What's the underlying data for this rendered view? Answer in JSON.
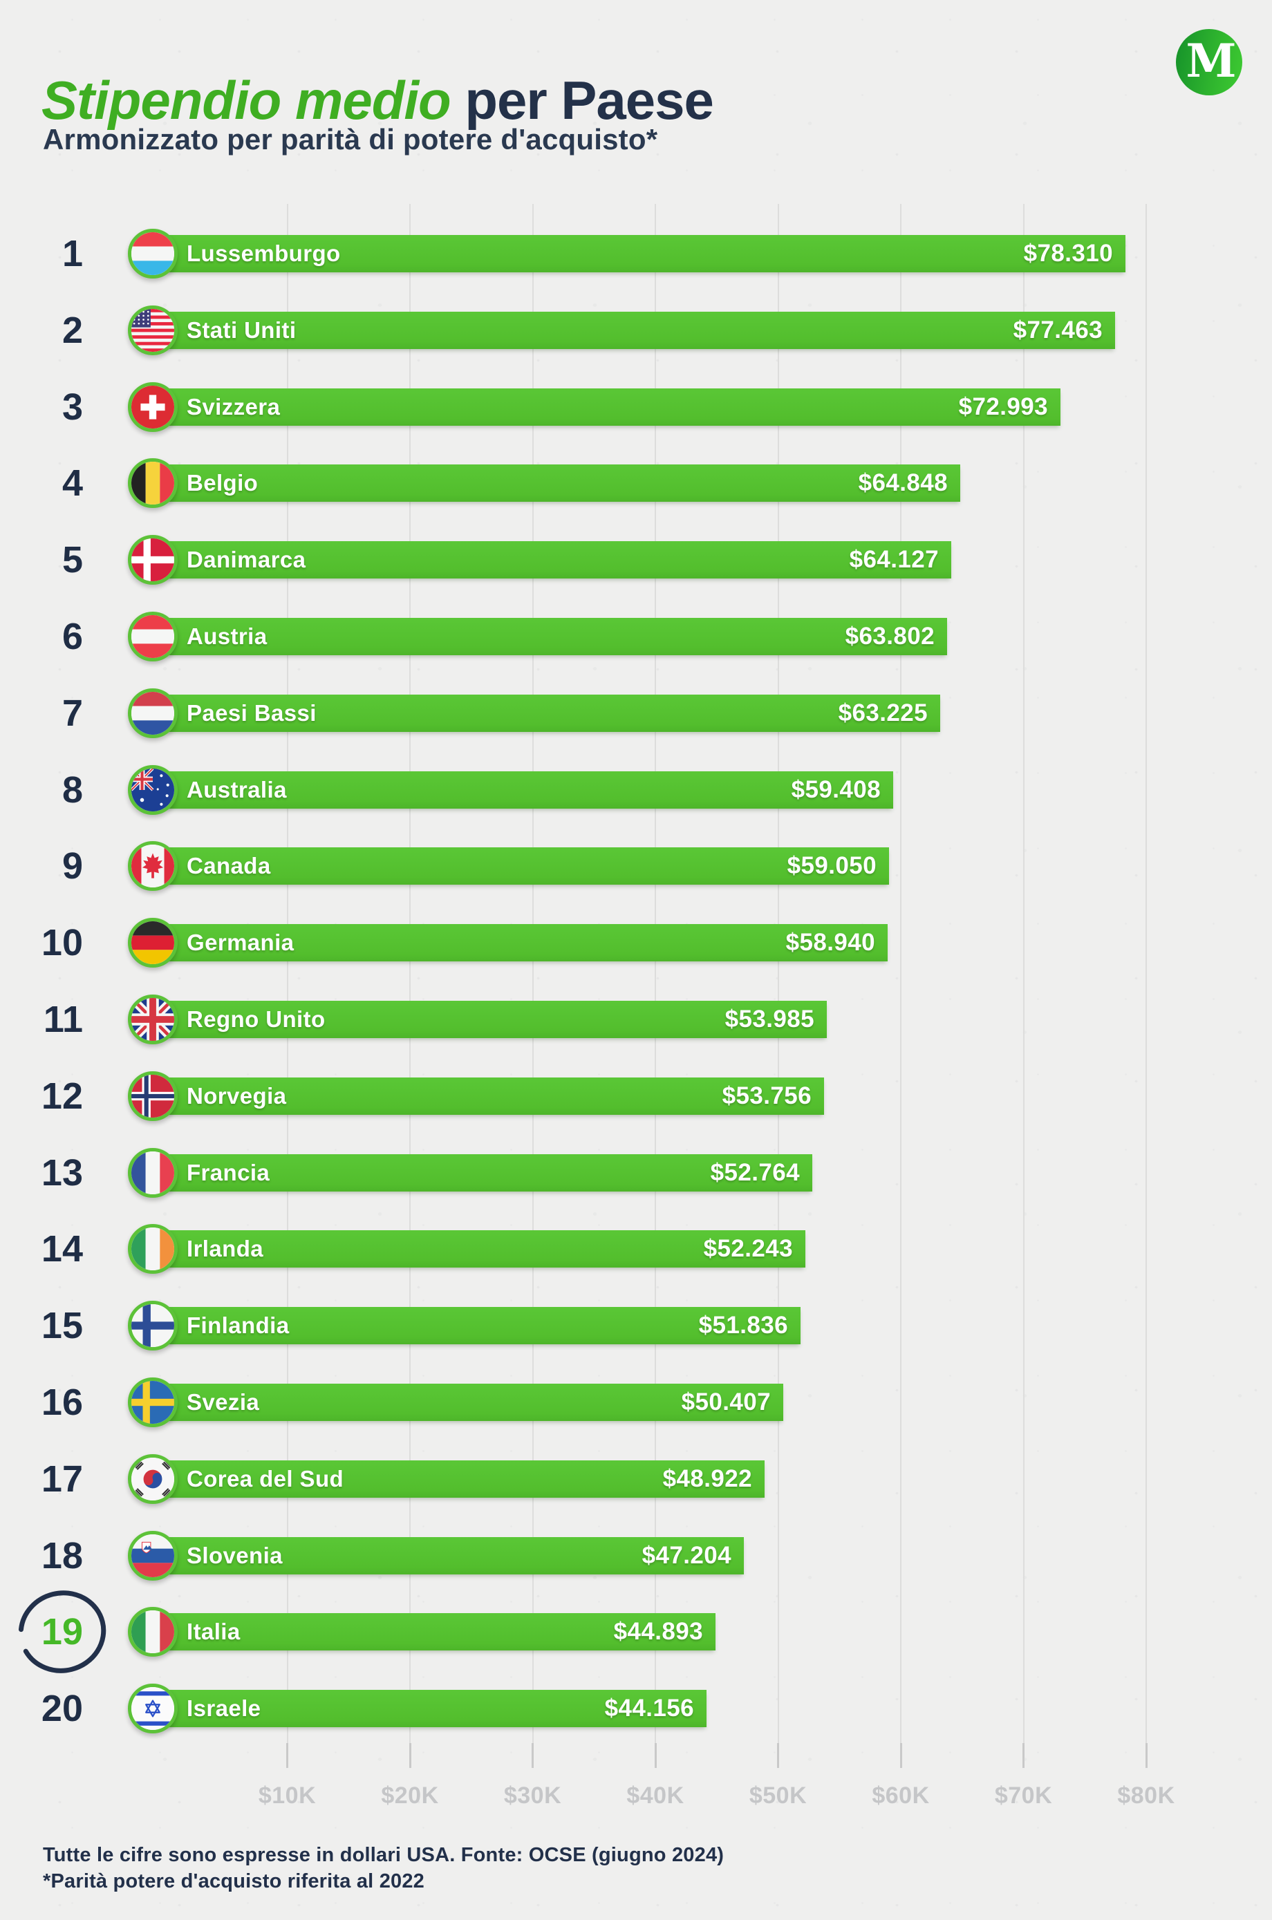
{
  "title": {
    "highlight": "Stipendio medio",
    "rest": " per Paese"
  },
  "subtitle": "Armonizzato per parità di potere d'acquisto*",
  "logo": {
    "letter": "M"
  },
  "colors": {
    "background": "#efefee",
    "bar_green": "#53be2d",
    "flag_ring_green": "#5cc238",
    "title_green": "#3fae22",
    "navy": "#233149",
    "highlight_rank_green": "#45b827",
    "axis_gray": "#c5c6c8",
    "gridline_gray": "#dddddc",
    "bar_text": "#ffffff"
  },
  "chart_data": {
    "type": "bar",
    "orientation": "horizontal",
    "title": "Stipendio medio per Paese",
    "subtitle": "Armonizzato per parità di potere d'acquisto*",
    "unit": "USD",
    "xlim": [
      0,
      80000
    ],
    "grid": "vertical-gridlines-on",
    "x_ticks": [
      {
        "label": "$10K",
        "value": 10000
      },
      {
        "label": "$20K",
        "value": 20000
      },
      {
        "label": "$30K",
        "value": 30000
      },
      {
        "label": "$40K",
        "value": 40000
      },
      {
        "label": "$50K",
        "value": 50000
      },
      {
        "label": "$60K",
        "value": 60000
      },
      {
        "label": "$70K",
        "value": 70000
      },
      {
        "label": "$80K",
        "value": 80000
      }
    ],
    "highlighted_rank": 19,
    "bars": [
      {
        "rank": 1,
        "country": "Lussemburgo",
        "flag": "lu",
        "value": 78310,
        "value_label": "$78.310"
      },
      {
        "rank": 2,
        "country": "Stati Uniti",
        "flag": "us",
        "value": 77463,
        "value_label": "$77.463"
      },
      {
        "rank": 3,
        "country": "Svizzera",
        "flag": "ch",
        "value": 72993,
        "value_label": "$72.993"
      },
      {
        "rank": 4,
        "country": "Belgio",
        "flag": "be",
        "value": 64848,
        "value_label": "$64.848"
      },
      {
        "rank": 5,
        "country": "Danimarca",
        "flag": "dk",
        "value": 64127,
        "value_label": "$64.127"
      },
      {
        "rank": 6,
        "country": "Austria",
        "flag": "at",
        "value": 63802,
        "value_label": "$63.802"
      },
      {
        "rank": 7,
        "country": "Paesi Bassi",
        "flag": "nl",
        "value": 63225,
        "value_label": "$63.225"
      },
      {
        "rank": 8,
        "country": "Australia",
        "flag": "au",
        "value": 59408,
        "value_label": "$59.408"
      },
      {
        "rank": 9,
        "country": "Canada",
        "flag": "ca",
        "value": 59050,
        "value_label": "$59.050"
      },
      {
        "rank": 10,
        "country": "Germania",
        "flag": "de",
        "value": 58940,
        "value_label": "$58.940"
      },
      {
        "rank": 11,
        "country": "Regno Unito",
        "flag": "gb",
        "value": 53985,
        "value_label": "$53.985"
      },
      {
        "rank": 12,
        "country": "Norvegia",
        "flag": "no",
        "value": 53756,
        "value_label": "$53.756"
      },
      {
        "rank": 13,
        "country": "Francia",
        "flag": "fr",
        "value": 52764,
        "value_label": "$52.764"
      },
      {
        "rank": 14,
        "country": "Irlanda",
        "flag": "ie",
        "value": 52243,
        "value_label": "$52.243"
      },
      {
        "rank": 15,
        "country": "Finlandia",
        "flag": "fi",
        "value": 51836,
        "value_label": "$51.836"
      },
      {
        "rank": 16,
        "country": "Svezia",
        "flag": "se",
        "value": 50407,
        "value_label": "$50.407"
      },
      {
        "rank": 17,
        "country": "Corea del Sud",
        "flag": "kr",
        "value": 48922,
        "value_label": "$48.922"
      },
      {
        "rank": 18,
        "country": "Slovenia",
        "flag": "si",
        "value": 47204,
        "value_label": "$47.204"
      },
      {
        "rank": 19,
        "country": "Italia",
        "flag": "it",
        "value": 44893,
        "value_label": "$44.893"
      },
      {
        "rank": 20,
        "country": "Israele",
        "flag": "il",
        "value": 44156,
        "value_label": "$44.156"
      }
    ]
  },
  "footer": {
    "line1": "Tutte le cifre sono espresse in dollari USA. Fonte: OCSE (giugno 2024)",
    "line2": "*Parità potere d'acquisto riferita al 2022"
  }
}
